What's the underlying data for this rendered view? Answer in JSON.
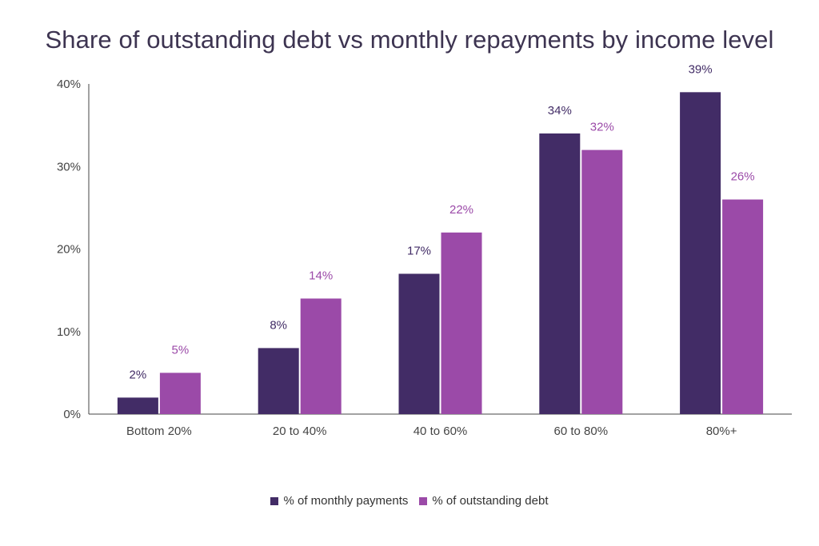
{
  "chart_data": {
    "type": "bar",
    "title": "Share of outstanding debt vs monthly repayments by income level",
    "categories": [
      "Bottom 20%",
      "20 to 40%",
      "40 to 60%",
      "60 to 80%",
      "80%+"
    ],
    "series": [
      {
        "name": "% of monthly payments",
        "values": [
          2,
          8,
          17,
          34,
          39
        ],
        "color": "#422c66"
      },
      {
        "name": "% of outstanding debt",
        "values": [
          5,
          14,
          22,
          32,
          26
        ],
        "color": "#9b4aa8"
      }
    ],
    "y_ticks": [
      "0%",
      "10%",
      "20%",
      "30%",
      "40%"
    ],
    "ylim": [
      0,
      40
    ],
    "grid": false,
    "legend_position": "bottom"
  }
}
